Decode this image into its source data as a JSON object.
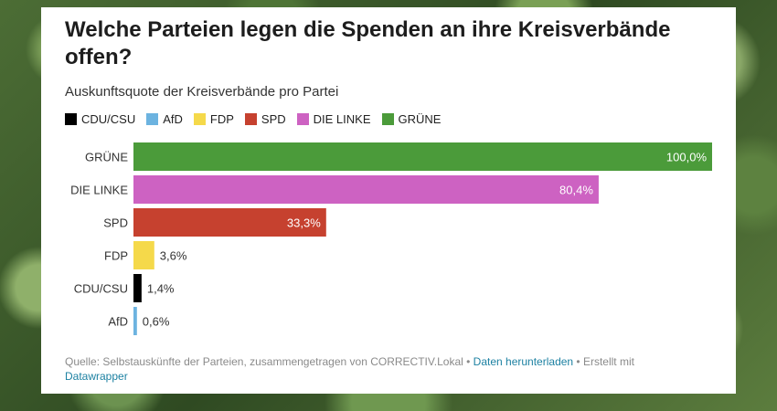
{
  "title": "Welche Parteien legen die Spenden an ihre Kreisverbände offen?",
  "subtitle": "Auskunftsquote der Kreisverbände pro Partei",
  "legend": [
    {
      "label": "CDU/CSU",
      "color": "#000000"
    },
    {
      "label": "AfD",
      "color": "#6cb3e0"
    },
    {
      "label": "FDP",
      "color": "#f5d94a"
    },
    {
      "label": "SPD",
      "color": "#c6412f"
    },
    {
      "label": "DIE LINKE",
      "color": "#cd62c2"
    },
    {
      "label": "GRÜNE",
      "color": "#4b9b3a"
    }
  ],
  "chart_data": {
    "type": "bar",
    "orientation": "horizontal",
    "categories": [
      "GRÜNE",
      "DIE LINKE",
      "SPD",
      "FDP",
      "CDU/CSU",
      "AfD"
    ],
    "values": [
      100.0,
      80.4,
      33.3,
      3.6,
      1.4,
      0.6
    ],
    "value_labels": [
      "100,0%",
      "80,4%",
      "33,3%",
      "3,6%",
      "1,4%",
      "0,6%"
    ],
    "colors": [
      "#4b9b3a",
      "#cd62c2",
      "#c6412f",
      "#f5d94a",
      "#000000",
      "#6cb3e0"
    ],
    "xlim": [
      0,
      100
    ],
    "grid": false,
    "legend_position": "top-left"
  },
  "footer": {
    "source_text": "Quelle: Selbstauskünfte der Parteien, zusammengetragen von CORRECTIV.Lokal",
    "separator": " • ",
    "download_link": "Daten herunterladen",
    "created_text": "Erstellt mit",
    "datawrapper_link": "Datawrapper"
  }
}
